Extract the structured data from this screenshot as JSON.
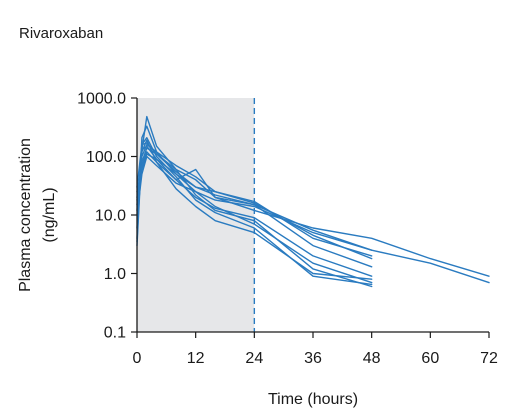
{
  "chart_data": {
    "type": "line",
    "title": "Rivaroxaban",
    "xlabel": "Time (hours)",
    "ylabel_lines": [
      "Plasma concentration",
      "(ng/mL)"
    ],
    "y_scale": "log",
    "xlim": [
      0,
      72
    ],
    "ylim": [
      0.1,
      1000
    ],
    "x_ticks": [
      0,
      12,
      24,
      36,
      48,
      60,
      72
    ],
    "x_tick_labels": [
      "0",
      "12",
      "24",
      "36",
      "48",
      "60",
      "72"
    ],
    "y_ticks": [
      0.1,
      1,
      10,
      100,
      1000
    ],
    "y_tick_labels": [
      "0.1",
      "1.0",
      "10.0",
      "100.0",
      "1000.0"
    ],
    "shaded_interval": [
      0,
      24
    ],
    "reference_line_x": 24,
    "grid": false,
    "colors": {
      "series": "#2a7bc0",
      "shade": "#e6e7e9",
      "axis": "#1a1a1a"
    },
    "series": [
      {
        "x": [
          0,
          1,
          2,
          4,
          8,
          12,
          16,
          24,
          36,
          48
        ],
        "y": [
          3,
          130,
          480,
          150,
          60,
          22,
          12,
          8,
          1.2,
          0.6
        ]
      },
      {
        "x": [
          0,
          1,
          2,
          4,
          8,
          12,
          16,
          24,
          36,
          48
        ],
        "y": [
          4,
          210,
          330,
          120,
          50,
          25,
          14,
          7,
          1.5,
          0.7
        ]
      },
      {
        "x": [
          0,
          1,
          2,
          4,
          8,
          12,
          16,
          24,
          36,
          48
        ],
        "y": [
          3.5,
          160,
          210,
          100,
          45,
          18,
          11,
          6,
          0.9,
          0.65
        ]
      },
      {
        "x": [
          0,
          1,
          2,
          4,
          8,
          12,
          16,
          24,
          36,
          48
        ],
        "y": [
          6,
          120,
          190,
          80,
          28,
          14,
          8,
          5,
          1.0,
          0.8
        ]
      },
      {
        "x": [
          0,
          1,
          2,
          4,
          8,
          12,
          16,
          24,
          36,
          48
        ],
        "y": [
          30,
          160,
          170,
          110,
          55,
          30,
          22,
          15,
          3.0,
          1.3
        ]
      },
      {
        "x": [
          0,
          1,
          2,
          4,
          8,
          12,
          16,
          24,
          36,
          48
        ],
        "y": [
          12,
          130,
          150,
          90,
          40,
          20,
          13,
          9,
          2.0,
          0.9
        ]
      },
      {
        "x": [
          0,
          1,
          2,
          4,
          8,
          12,
          16,
          24,
          36,
          48
        ],
        "y": [
          20,
          100,
          160,
          120,
          70,
          45,
          25,
          16,
          4.5,
          1.8
        ]
      },
      {
        "x": [
          0,
          1,
          2,
          4,
          8,
          12,
          16,
          24,
          36,
          48
        ],
        "y": [
          18,
          80,
          140,
          110,
          60,
          40,
          20,
          15,
          5.5,
          2.5
        ]
      },
      {
        "x": [
          0,
          1,
          2,
          4,
          8,
          12,
          16,
          24,
          36,
          48
        ],
        "y": [
          25,
          60,
          110,
          90,
          50,
          30,
          25,
          17,
          4.0,
          2.0
        ]
      },
      {
        "x": [
          0,
          1,
          2,
          4,
          8,
          12,
          16,
          24,
          36,
          48,
          60,
          72
        ],
        "y": [
          15,
          70,
          120,
          80,
          40,
          60,
          20,
          12,
          6.0,
          4.0,
          1.8,
          0.9
        ]
      },
      {
        "x": [
          0,
          1,
          2,
          4,
          8,
          12,
          16,
          24,
          36,
          48,
          60,
          72
        ],
        "y": [
          10,
          50,
          100,
          70,
          35,
          25,
          18,
          14,
          5.0,
          2.5,
          1.5,
          0.7
        ]
      }
    ]
  }
}
